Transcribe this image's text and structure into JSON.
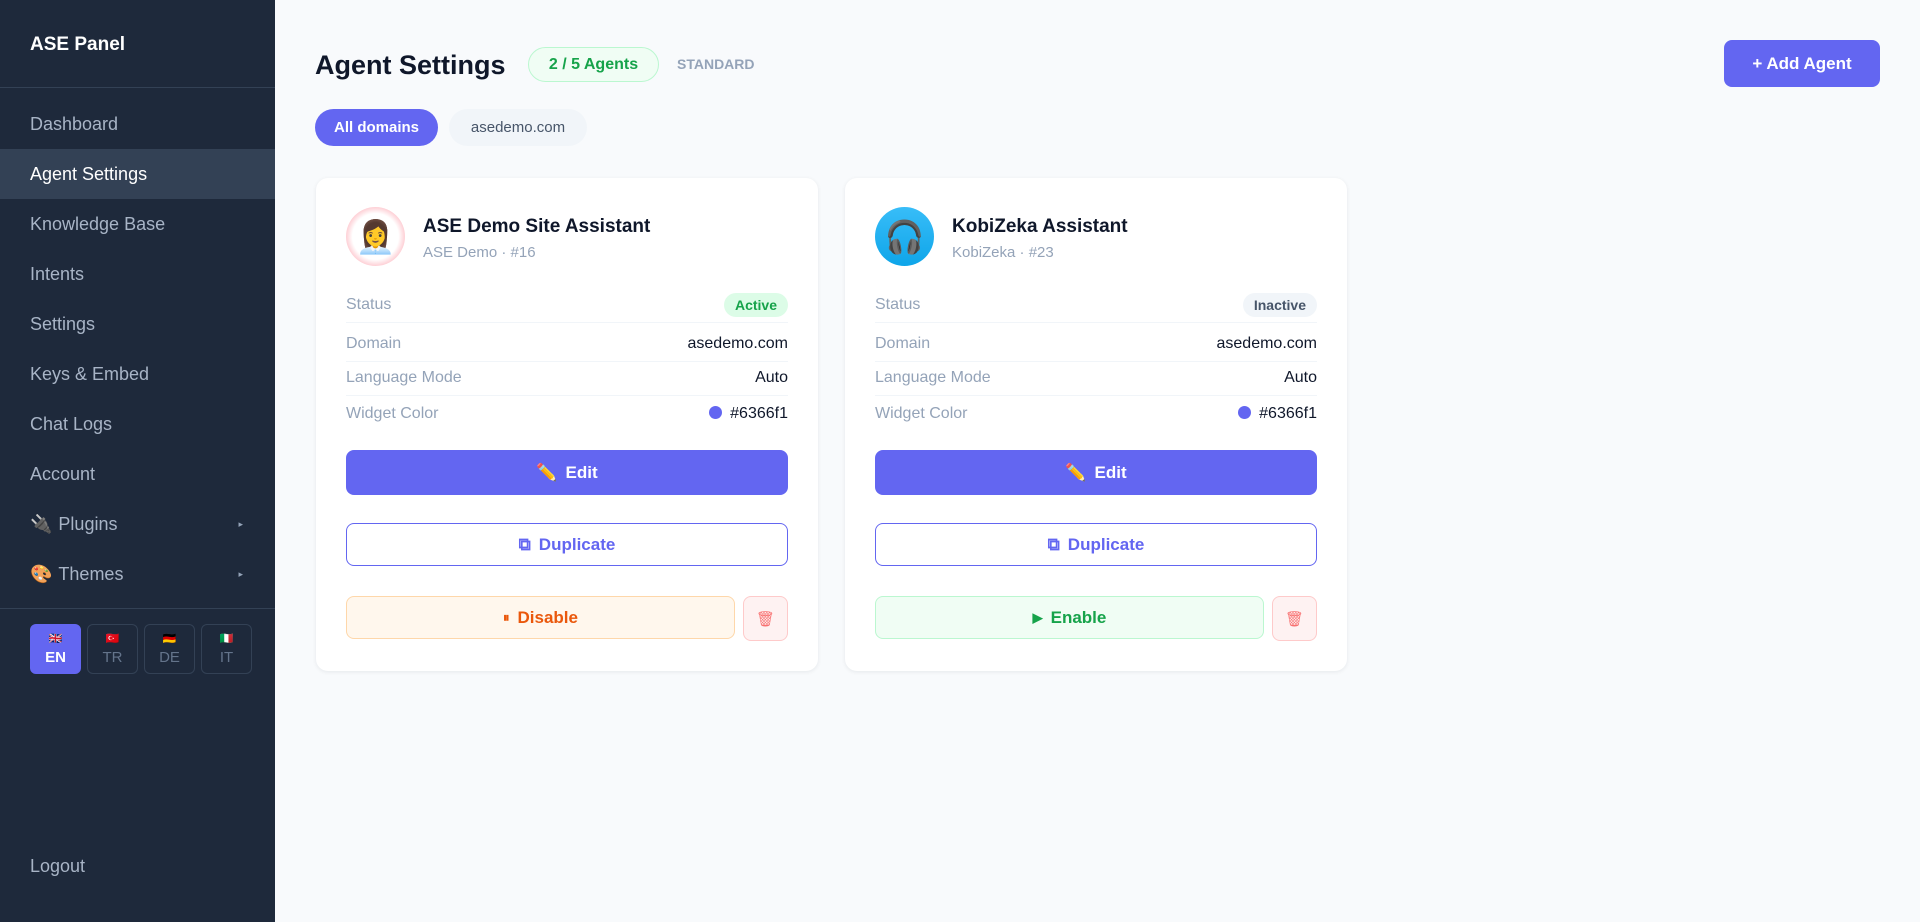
{
  "sidebar": {
    "brand": "ASE Panel",
    "items": [
      {
        "label": "Dashboard"
      },
      {
        "label": "Agent Settings",
        "active": true
      },
      {
        "label": "Knowledge Base"
      },
      {
        "label": "Intents"
      },
      {
        "label": "Settings"
      },
      {
        "label": "Keys & Embed"
      },
      {
        "label": "Chat Logs"
      },
      {
        "label": "Account"
      },
      {
        "label": "Plugins",
        "icon": "🔌",
        "arrow": "▸"
      },
      {
        "label": "Themes",
        "icon": "🎨",
        "arrow": "▸"
      }
    ],
    "languages": [
      {
        "flag": "🇬🇧",
        "code": "EN"
      },
      {
        "flag": "🇹🇷",
        "code": "TR"
      },
      {
        "flag": "🇩🇪",
        "code": "DE"
      },
      {
        "flag": "🇮🇹",
        "code": "IT"
      }
    ],
    "logout": "Logout"
  },
  "header": {
    "title": "Agent Settings",
    "count": "2 / 5 Agents",
    "plan": "STANDARD",
    "add_label": "+ Add Agent"
  },
  "filters": [
    {
      "label": "All domains",
      "active": true
    },
    {
      "label": "asedemo.com"
    }
  ],
  "labels": {
    "status": "Status",
    "domain": "Domain",
    "language": "Language Mode",
    "color": "Widget Color",
    "edit": "Edit",
    "duplicate": "Duplicate",
    "edit_icon": "✏️",
    "duplicate_icon": "⧉",
    "trash_icon": "🗑"
  },
  "agents": [
    {
      "name": "ASE Demo Site Assistant",
      "sub": "ASE Demo · #16",
      "avatar": "👩‍💼",
      "status": "Active",
      "domain": "asedemo.com",
      "language": "Auto",
      "color": "#6366f1",
      "toggle_icon": "⏸",
      "toggle": "Disable"
    },
    {
      "name": "KobiZeka Assistant",
      "sub": "KobiZeka · #23",
      "avatar": "🎧",
      "status": "Inactive",
      "domain": "asedemo.com",
      "language": "Auto",
      "color": "#6366f1",
      "toggle_icon": "▶",
      "toggle": "Enable"
    }
  ],
  "colors": {
    "accent": "#6366f1",
    "sidebar": "#1e293b",
    "active": "#16a34a",
    "disable": "#ea580c"
  }
}
